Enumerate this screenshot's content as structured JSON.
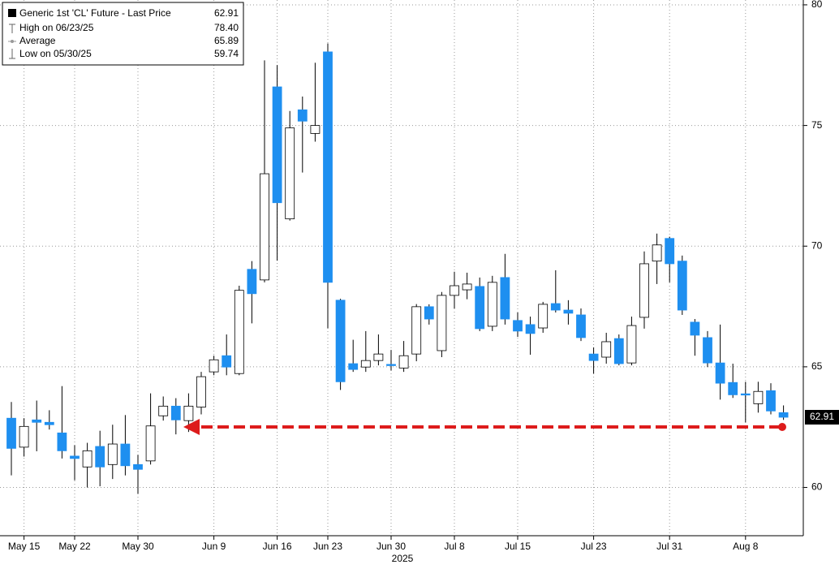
{
  "chart_data": {
    "type": "candlestick",
    "categories": [
      null,
      "May 15",
      null,
      null,
      null,
      "May 22",
      null,
      null,
      null,
      null,
      "May 30",
      null,
      null,
      null,
      null,
      null,
      "Jun 9",
      null,
      null,
      null,
      null,
      "Jun 16",
      null,
      null,
      null,
      "Jun 23",
      null,
      null,
      null,
      null,
      "Jun 30",
      null,
      null,
      null,
      null,
      "Jul 8",
      null,
      null,
      null,
      null,
      "Jul 15",
      null,
      null,
      null,
      null,
      null,
      "Jul 23",
      null,
      null,
      null,
      null,
      null,
      "Jul 31",
      null,
      null,
      null,
      null,
      null,
      "Aug 8",
      null,
      null,
      null
    ],
    "open": [
      62.87,
      61.67,
      62.8,
      62.7,
      62.26,
      61.3,
      60.85,
      61.7,
      60.95,
      61.8,
      60.95,
      61.1,
      62.97,
      63.37,
      62.77,
      63.33,
      64.79,
      65.46,
      64.72,
      69.04,
      68.6,
      76.6,
      71.13,
      75.65,
      74.67,
      78.05,
      67.76,
      65.13,
      64.99,
      65.26,
      65.1,
      64.95,
      65.53,
      67.49,
      65.67,
      67.96,
      68.19,
      68.33,
      66.68,
      68.7,
      66.92,
      66.75,
      66.61,
      67.62,
      67.35,
      67.15,
      65.53,
      65.4,
      66.17,
      65.16,
      67.05,
      69.38,
      70.32,
      69.38,
      66.85,
      66.21,
      65.16,
      64.35,
      63.88,
      63.47,
      64.01,
      63.1
    ],
    "high": [
      63.54,
      62.87,
      63.6,
      63.2,
      64.2,
      61.75,
      61.85,
      62.35,
      62.6,
      63.0,
      61.35,
      63.9,
      63.77,
      63.7,
      63.9,
      64.79,
      65.46,
      66.34,
      68.36,
      69.38,
      77.7,
      77.5,
      75.6,
      76.2,
      77.6,
      78.4,
      67.82,
      66.12,
      66.48,
      66.34,
      65.7,
      66.07,
      67.6,
      67.59,
      68.1,
      68.94,
      68.9,
      68.7,
      68.77,
      69.68,
      67.25,
      67.08,
      67.69,
      69.0,
      67.76,
      67.42,
      65.8,
      66.41,
      66.34,
      67.08,
      69.78,
      70.52,
      70.39,
      69.61,
      66.98,
      66.48,
      66.75,
      65.13,
      64.38,
      64.38,
      64.32,
      63.4
    ],
    "low": [
      60.5,
      61.28,
      61.5,
      62.4,
      61.2,
      60.3,
      60.0,
      60.05,
      60.35,
      60.5,
      59.74,
      60.95,
      62.77,
      62.2,
      62.3,
      63.03,
      64.65,
      64.65,
      64.65,
      66.8,
      68.5,
      69.4,
      71.06,
      73.05,
      74.33,
      66.6,
      64.04,
      64.79,
      64.79,
      65.06,
      64.85,
      64.79,
      65.23,
      66.75,
      65.4,
      67.42,
      67.8,
      66.48,
      66.48,
      66.75,
      66.24,
      65.5,
      66.41,
      67.25,
      66.75,
      66.07,
      64.72,
      65.13,
      65.06,
      65.06,
      66.58,
      68.43,
      68.5,
      67.15,
      65.46,
      64.99,
      63.64,
      63.71,
      62.7,
      63.1,
      63.03,
      62.8
    ],
    "close": [
      61.62,
      62.53,
      62.7,
      62.6,
      61.52,
      61.2,
      61.52,
      60.85,
      61.8,
      60.9,
      60.75,
      62.55,
      63.37,
      62.8,
      63.37,
      64.59,
      65.29,
      64.99,
      68.17,
      68.03,
      73.0,
      71.8,
      74.9,
      75.18,
      75.0,
      68.5,
      64.38,
      64.89,
      65.26,
      65.53,
      65.06,
      65.46,
      67.49,
      66.98,
      67.96,
      68.36,
      68.43,
      66.58,
      68.5,
      66.98,
      66.48,
      66.38,
      67.59,
      67.35,
      67.22,
      66.21,
      65.26,
      66.04,
      65.13,
      66.71,
      69.27,
      70.05,
      69.27,
      67.35,
      66.31,
      65.16,
      64.32,
      63.84,
      63.84,
      63.98,
      63.17,
      62.91
    ],
    "up_color": "#ffffff",
    "down_color": "#1e8ff0",
    "ylim": [
      58,
      80.2
    ],
    "yticks": [
      60,
      65,
      70,
      75,
      80
    ],
    "grid": true,
    "x_axis_label": "2025",
    "last_price_label": "62.91",
    "legend": {
      "labels": [
        "Generic 1st 'CL' Future - Last Price",
        "High on 06/23/25",
        "Average",
        "Low on 05/30/25"
      ],
      "values": [
        "62.91",
        "78.40",
        "65.89",
        "59.74"
      ]
    }
  }
}
